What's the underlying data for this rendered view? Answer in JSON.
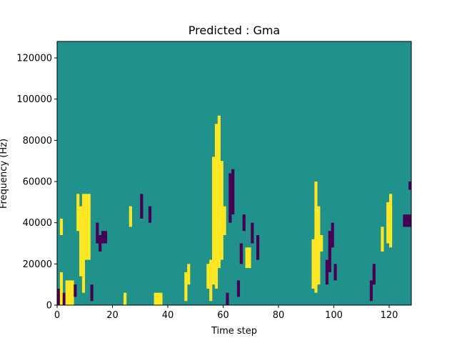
{
  "chart_data": {
    "type": "heatmap",
    "title": "Predicted : Gma",
    "xlabel": "Time step",
    "ylabel": "Frequency (Hz)",
    "xlim": [
      0,
      128
    ],
    "ylim": [
      0,
      128000
    ],
    "x_ticks": [
      0,
      20,
      40,
      60,
      80,
      100,
      120
    ],
    "x_tick_labels": [
      "0",
      "20",
      "40",
      "60",
      "80",
      "100",
      "120"
    ],
    "y_ticks": [
      0,
      20000,
      40000,
      60000,
      80000,
      100000,
      120000
    ],
    "y_tick_labels": [
      "0",
      "20000",
      "40000",
      "60000",
      "80000",
      "100000",
      "120000"
    ],
    "colors": {
      "-1": "#440154",
      "0": "#21918c",
      "1": "#fde725"
    },
    "background_value": 0,
    "grid": false,
    "value_levels": [
      -1,
      0,
      1
    ],
    "cells": [
      {
        "x": 0,
        "y_range": [
          0,
          8000
        ],
        "value": -1
      },
      {
        "x": 1,
        "y_range": [
          0,
          16000
        ],
        "value": 1
      },
      {
        "x": 1,
        "y_range": [
          34000,
          42000
        ],
        "value": 1
      },
      {
        "x": 2,
        "y_range": [
          0,
          6000
        ],
        "value": -1
      },
      {
        "x": 3,
        "y_range": [
          0,
          12000
        ],
        "value": 1
      },
      {
        "x": 4,
        "y_range": [
          0,
          12000
        ],
        "value": 1
      },
      {
        "x": 5,
        "y_range": [
          0,
          12000
        ],
        "value": 1
      },
      {
        "x": 6,
        "y_range": [
          4000,
          10000
        ],
        "value": -1
      },
      {
        "x": 7,
        "y_range": [
          36000,
          54000
        ],
        "value": 1
      },
      {
        "x": 8,
        "y_range": [
          14000,
          48000
        ],
        "value": 1
      },
      {
        "x": 9,
        "y_range": [
          6000,
          54000
        ],
        "value": 1
      },
      {
        "x": 10,
        "y_range": [
          22000,
          54000
        ],
        "value": 1
      },
      {
        "x": 11,
        "y_range": [
          22000,
          54000
        ],
        "value": 1
      },
      {
        "x": 12,
        "y_range": [
          2000,
          10000
        ],
        "value": -1
      },
      {
        "x": 14,
        "y_range": [
          30000,
          40000
        ],
        "value": -1
      },
      {
        "x": 15,
        "y_range": [
          26000,
          34000
        ],
        "value": -1
      },
      {
        "x": 16,
        "y_range": [
          30000,
          36000
        ],
        "value": -1
      },
      {
        "x": 17,
        "y_range": [
          30000,
          36000
        ],
        "value": -1
      },
      {
        "x": 24,
        "y_range": [
          0,
          6000
        ],
        "value": 1
      },
      {
        "x": 26,
        "y_range": [
          38000,
          48000
        ],
        "value": 1
      },
      {
        "x": 30,
        "y_range": [
          42000,
          54000
        ],
        "value": -1
      },
      {
        "x": 33,
        "y_range": [
          40000,
          48000
        ],
        "value": -1
      },
      {
        "x": 35,
        "y_range": [
          0,
          6000
        ],
        "value": 1
      },
      {
        "x": 36,
        "y_range": [
          0,
          6000
        ],
        "value": 1
      },
      {
        "x": 37,
        "y_range": [
          0,
          6000
        ],
        "value": 1
      },
      {
        "x": 46,
        "y_range": [
          2000,
          16000
        ],
        "value": 1
      },
      {
        "x": 47,
        "y_range": [
          10000,
          20000
        ],
        "value": 1
      },
      {
        "x": 54,
        "y_range": [
          8000,
          20000
        ],
        "value": 1
      },
      {
        "x": 55,
        "y_range": [
          2000,
          22000
        ],
        "value": 1
      },
      {
        "x": 56,
        "y_range": [
          10000,
          72000
        ],
        "value": 1
      },
      {
        "x": 57,
        "y_range": [
          8000,
          88000
        ],
        "value": 1
      },
      {
        "x": 58,
        "y_range": [
          18000,
          92000
        ],
        "value": 1
      },
      {
        "x": 59,
        "y_range": [
          22000,
          70000
        ],
        "value": 1
      },
      {
        "x": 60,
        "y_range": [
          34000,
          48000
        ],
        "value": 1
      },
      {
        "x": 61,
        "y_range": [
          0,
          6000
        ],
        "value": -1
      },
      {
        "x": 62,
        "y_range": [
          40000,
          64000
        ],
        "value": -1
      },
      {
        "x": 63,
        "y_range": [
          44000,
          66000
        ],
        "value": -1
      },
      {
        "x": 65,
        "y_range": [
          4000,
          12000
        ],
        "value": -1
      },
      {
        "x": 66,
        "y_range": [
          20000,
          30000
        ],
        "value": -1
      },
      {
        "x": 67,
        "y_range": [
          36000,
          44000
        ],
        "value": -1
      },
      {
        "x": 68,
        "y_range": [
          18000,
          28000
        ],
        "value": 1
      },
      {
        "x": 69,
        "y_range": [
          18000,
          28000
        ],
        "value": 1
      },
      {
        "x": 70,
        "y_range": [
          30000,
          40000
        ],
        "value": -1
      },
      {
        "x": 72,
        "y_range": [
          22000,
          34000
        ],
        "value": -1
      },
      {
        "x": 92,
        "y_range": [
          8000,
          32000
        ],
        "value": 1
      },
      {
        "x": 93,
        "y_range": [
          6000,
          60000
        ],
        "value": 1
      },
      {
        "x": 94,
        "y_range": [
          10000,
          48000
        ],
        "value": 1
      },
      {
        "x": 95,
        "y_range": [
          26000,
          34000
        ],
        "value": 1
      },
      {
        "x": 97,
        "y_range": [
          10000,
          22000
        ],
        "value": -1
      },
      {
        "x": 98,
        "y_range": [
          16000,
          36000
        ],
        "value": -1
      },
      {
        "x": 99,
        "y_range": [
          28000,
          40000
        ],
        "value": -1
      },
      {
        "x": 100,
        "y_range": [
          12000,
          20000
        ],
        "value": -1
      },
      {
        "x": 113,
        "y_range": [
          2000,
          12000
        ],
        "value": -1
      },
      {
        "x": 114,
        "y_range": [
          10000,
          20000
        ],
        "value": -1
      },
      {
        "x": 117,
        "y_range": [
          26000,
          38000
        ],
        "value": 1
      },
      {
        "x": 119,
        "y_range": [
          30000,
          50000
        ],
        "value": 1
      },
      {
        "x": 120,
        "y_range": [
          28000,
          54000
        ],
        "value": 1
      },
      {
        "x": 125,
        "y_range": [
          38000,
          44000
        ],
        "value": -1
      },
      {
        "x": 126,
        "y_range": [
          38000,
          44000
        ],
        "value": -1
      },
      {
        "x": 127,
        "y_range": [
          38000,
          44000
        ],
        "value": -1
      },
      {
        "x": 127,
        "y_range": [
          56000,
          60000
        ],
        "value": -1
      }
    ]
  }
}
